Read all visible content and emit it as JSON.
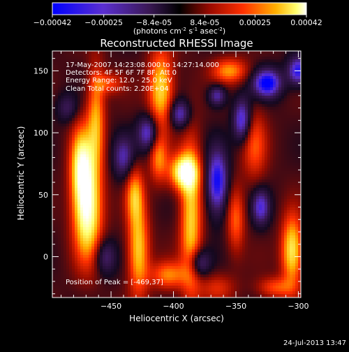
{
  "colorbar": {
    "ticks": [
      "-0.00042",
      "-0.00025",
      "-8.4e-05",
      "8.4e-05",
      "0.00025",
      "0.00042"
    ],
    "tick_values": [
      -0.00042,
      -0.00025,
      -8.4e-05,
      8.4e-05,
      0.00025,
      0.00042
    ],
    "unit_main": "(photons cm",
    "unit_exp1": "-2",
    "unit_mid": " s",
    "unit_exp2": "-1",
    "unit_end": " asec",
    "unit_exp3": "-2",
    "unit_close": ")",
    "range": [
      -0.00042,
      0.00042
    ],
    "colors": [
      "#0000ff",
      "#6a2bd6",
      "#4b1f7a",
      "#000000",
      "#9a0a00",
      "#ff2a00",
      "#ff9a00",
      "#ffff66",
      "#ffffff"
    ]
  },
  "chart_data": {
    "type": "heatmap",
    "title": "Reconstructed RHESSI Image",
    "xlabel": "Heliocentric X (arcsec)",
    "ylabel": "Heliocentric Y (arcsec)",
    "x_ticks": [
      -450,
      -400,
      -350,
      -300
    ],
    "y_ticks": [
      0,
      50,
      100,
      150
    ],
    "xlim": [
      -497,
      -298
    ],
    "ylim": [
      -33,
      166
    ],
    "annotations": {
      "line1": "17-May-2007 14:23:08.000 to 14:27:14.000",
      "line2": "Detectors: 4F 5F 6F 7F 8F, Att 0",
      "line3": "Energy Range: 12.0 - 25.0 keV",
      "line4": "Clean    Total counts: 2.20E+04",
      "peak": "Position of Peak = [-469,37]"
    },
    "peak_position": [
      -469,
      37
    ]
  },
  "footer": {
    "date": "24-Jul-2013 13:47"
  }
}
